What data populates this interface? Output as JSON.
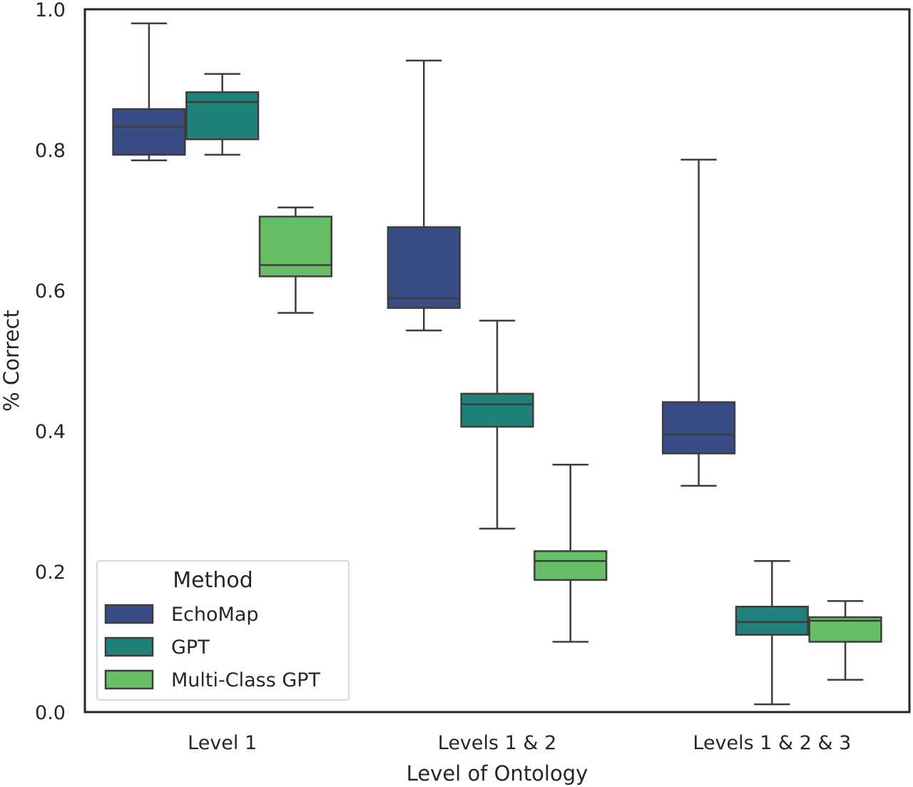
{
  "chart_data": {
    "type": "box",
    "xlabel": "Level of Ontology",
    "ylabel": "% Correct",
    "ylim": [
      0.0,
      1.0
    ],
    "yticks": [
      "0.0",
      "0.2",
      "0.4",
      "0.6",
      "0.8",
      "1.0"
    ],
    "categories": [
      "Level 1",
      "Levels 1 & 2",
      "Levels 1 & 2 & 3"
    ],
    "grid": false,
    "legend": {
      "title": "Method",
      "position": "lower-left"
    },
    "series": [
      {
        "name": "EchoMap",
        "color": "#3a4c85",
        "boxes": [
          {
            "min": 0.785,
            "q1": 0.793,
            "median": 0.833,
            "q3": 0.858,
            "max": 0.98
          },
          {
            "min": 0.543,
            "q1": 0.575,
            "median": 0.589,
            "q3": 0.69,
            "max": 0.927
          },
          {
            "min": 0.322,
            "q1": 0.368,
            "median": 0.395,
            "q3": 0.441,
            "max": 0.786
          }
        ]
      },
      {
        "name": "GPT",
        "color": "#20817a",
        "boxes": [
          {
            "min": 0.793,
            "q1": 0.815,
            "median": 0.868,
            "q3": 0.882,
            "max": 0.908
          },
          {
            "min": 0.261,
            "q1": 0.406,
            "median": 0.438,
            "q3": 0.453,
            "max": 0.557
          },
          {
            "min": 0.011,
            "q1": 0.11,
            "median": 0.128,
            "q3": 0.15,
            "max": 0.215
          }
        ]
      },
      {
        "name": "Multi-Class GPT",
        "color": "#66bf67",
        "boxes": [
          {
            "min": 0.568,
            "q1": 0.62,
            "median": 0.636,
            "q3": 0.705,
            "max": 0.718
          },
          {
            "min": 0.1,
            "q1": 0.188,
            "median": 0.215,
            "q3": 0.229,
            "max": 0.352
          },
          {
            "min": 0.046,
            "q1": 0.1,
            "median": 0.13,
            "q3": 0.135,
            "max": 0.158
          }
        ]
      }
    ]
  }
}
